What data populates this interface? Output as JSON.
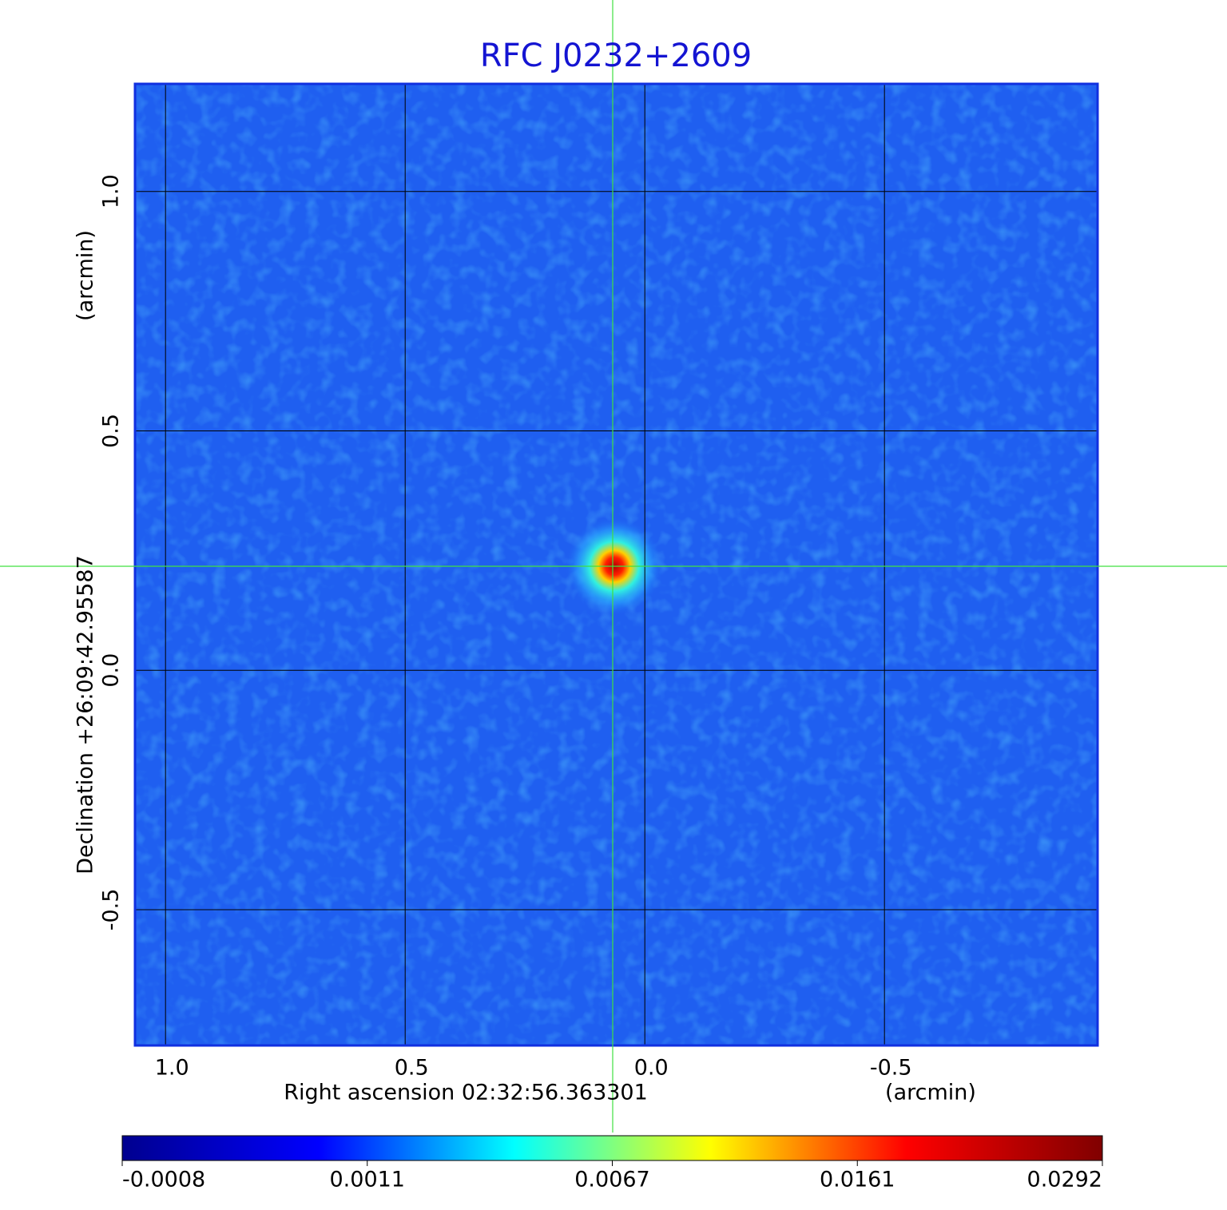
{
  "chart_data": {
    "type": "image",
    "title": "RFC J0232+2609",
    "x_label": "Right ascension  02:32:56.363301",
    "x_unit": "(arcmin)",
    "y_label": "Declination  +26:09:42.95587",
    "y_unit": "(arcmin)",
    "xlim": [
      1.062,
      -0.943
    ],
    "ylim": [
      -0.782,
      1.223
    ],
    "xticks": [
      {
        "value": 1,
        "label": "1.0"
      },
      0.5,
      {
        "value": 0,
        "label": "0.0"
      },
      -0.5
    ],
    "yticks": [
      -0.5,
      {
        "value": 0,
        "label": "0.0"
      },
      0.5,
      {
        "value": 1,
        "label": "1.0"
      }
    ],
    "grid": true,
    "colorbar": {
      "ticks": [
        -0.0008,
        0.0011,
        0.0067,
        0.0161,
        0.0292
      ],
      "colors": [
        "#00008f",
        "#0000ff",
        "#00ffff",
        "#ffff00",
        "#ff0000",
        "#800000"
      ]
    }
  }
}
